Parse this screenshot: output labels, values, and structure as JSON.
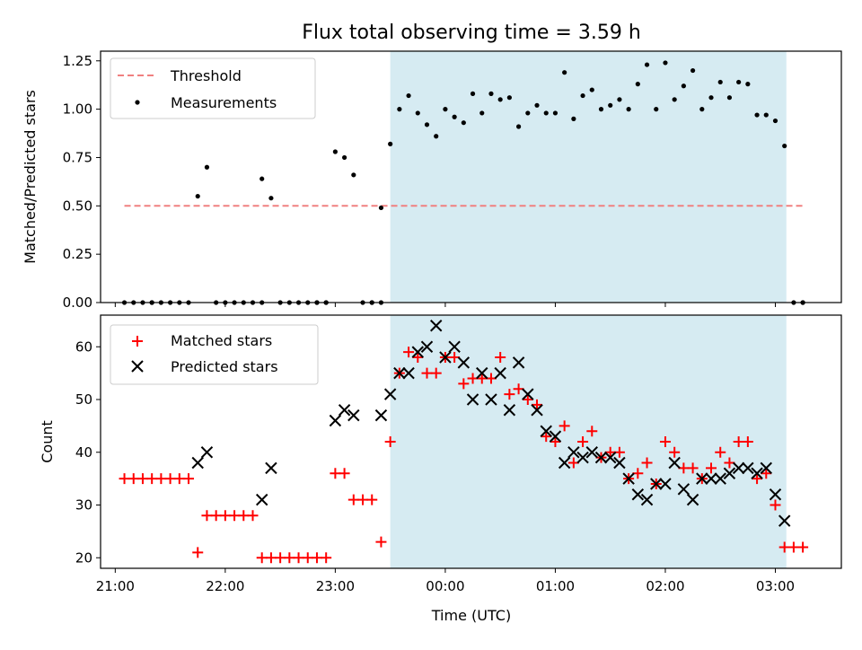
{
  "chart_data": [
    {
      "type": "scatter",
      "title": "Flux total observing time = 3.59 h",
      "ylabel": "Matched/Predicted stars",
      "xlabel": "",
      "xlim": [
        "20:52",
        "03:36"
      ],
      "ylim": [
        0,
        1.3
      ],
      "yticks": [
        0.0,
        0.25,
        0.5,
        0.75,
        1.0,
        1.25
      ],
      "ytick_labels": [
        "0.00",
        "0.25",
        "0.50",
        "0.75",
        "1.00",
        "1.25"
      ],
      "highlight_span": [
        "23:30",
        "03:06"
      ],
      "highlight_color": "#add8e6",
      "legend_position": "upper-left",
      "threshold": {
        "name": "Threshold",
        "value": 0.5,
        "x_range": [
          "21:05",
          "03:15"
        ],
        "color": "#f08080"
      },
      "series": [
        {
          "name": "Measurements",
          "color": "#000000",
          "marker": "dot",
          "x": [
            "21:05",
            "21:10",
            "21:15",
            "21:20",
            "21:25",
            "21:30",
            "21:35",
            "21:40",
            "21:45",
            "21:50",
            "21:55",
            "22:00",
            "22:05",
            "22:10",
            "22:15",
            "22:20",
            "22:25",
            "22:30",
            "22:35",
            "22:40",
            "22:45",
            "22:50",
            "22:55",
            "23:00",
            "23:05",
            "23:10",
            "23:15",
            "23:20",
            "23:25",
            "23:30",
            "23:35",
            "23:40",
            "23:45",
            "23:50",
            "23:55",
            "24:00",
            "24:05",
            "24:10",
            "24:15",
            "24:20",
            "24:25",
            "24:30",
            "24:35",
            "24:40",
            "24:45",
            "24:50",
            "24:55",
            "25:00",
            "25:05",
            "25:10",
            "25:15",
            "25:20",
            "25:25",
            "25:30",
            "25:35",
            "25:40",
            "25:45",
            "25:50",
            "25:55",
            "26:00",
            "26:05",
            "26:10",
            "26:15",
            "26:20",
            "26:25",
            "26:30",
            "26:35",
            "26:40",
            "26:45",
            "26:50",
            "26:55",
            "27:00",
            "27:05",
            "27:10",
            "27:15",
            "21:20",
            "22:20",
            "22:50",
            "22:55",
            "23:20",
            "23:25",
            "27:15"
          ],
          "y": [
            0,
            0,
            0,
            0,
            0,
            0,
            0,
            0,
            0.55,
            0.7,
            0,
            0,
            0,
            0,
            0,
            0.64,
            0.54,
            0,
            0,
            0,
            0,
            0,
            0,
            0.78,
            0.75,
            0.66,
            0,
            0,
            0.49,
            0.82,
            1.0,
            1.07,
            0.98,
            0.92,
            0.86,
            1.0,
            0.96,
            0.93,
            1.08,
            0.98,
            1.08,
            1.05,
            1.06,
            0.91,
            0.98,
            1.02,
            0.98,
            0.98,
            1.19,
            0.95,
            1.07,
            1.1,
            1.0,
            1.02,
            1.05,
            1.0,
            1.13,
            1.23,
            1.0,
            1.24,
            1.05,
            1.12,
            1.2,
            1.0,
            1.06,
            1.14,
            1.06,
            1.14,
            1.13,
            0.97,
            0.97,
            0.94,
            0.81,
            0,
            0,
            0,
            0,
            0,
            0,
            0,
            0,
            0
          ]
        }
      ]
    },
    {
      "type": "scatter",
      "title": "",
      "ylabel": "Count",
      "xlabel": "Time (UTC)",
      "xlim": [
        "20:52",
        "03:36"
      ],
      "ylim": [
        18,
        66
      ],
      "yticks": [
        20,
        30,
        40,
        50,
        60
      ],
      "xticks": [
        "21:00",
        "22:00",
        "23:00",
        "00:00",
        "01:00",
        "02:00",
        "03:00"
      ],
      "highlight_span": [
        "23:30",
        "03:06"
      ],
      "legend_position": "upper-left",
      "series": [
        {
          "name": "Matched stars",
          "color": "#ff0000",
          "marker": "plus",
          "x": [
            "21:05",
            "21:10",
            "21:15",
            "21:20",
            "21:25",
            "21:30",
            "21:35",
            "21:40",
            "21:45",
            "21:50",
            "21:55",
            "22:00",
            "22:05",
            "22:10",
            "22:15",
            "22:20",
            "22:25",
            "22:30",
            "22:35",
            "22:40",
            "22:45",
            "22:50",
            "22:55",
            "23:00",
            "23:05",
            "23:10",
            "23:15",
            "23:20",
            "23:25",
            "23:30",
            "23:35",
            "23:40",
            "23:45",
            "23:50",
            "23:55",
            "24:00",
            "24:05",
            "24:10",
            "24:15",
            "24:20",
            "24:25",
            "24:30",
            "24:35",
            "24:40",
            "24:45",
            "24:50",
            "24:55",
            "25:00",
            "25:05",
            "25:10",
            "25:15",
            "25:20",
            "25:25",
            "25:30",
            "25:35",
            "25:40",
            "25:45",
            "25:50",
            "25:55",
            "26:00",
            "26:05",
            "26:10",
            "26:15",
            "26:20",
            "26:25",
            "26:30",
            "26:35",
            "26:40",
            "26:45",
            "26:50",
            "26:55",
            "27:00",
            "27:05",
            "27:10",
            "27:15"
          ],
          "y": [
            35,
            35,
            35,
            35,
            35,
            35,
            35,
            35,
            21,
            28,
            28,
            28,
            28,
            28,
            28,
            20,
            20,
            20,
            20,
            20,
            20,
            20,
            20,
            36,
            36,
            31,
            31,
            31,
            23,
            42,
            55,
            59,
            58,
            55,
            55,
            58,
            58,
            53,
            54,
            54,
            54,
            58,
            51,
            52,
            50,
            49,
            43,
            42,
            45,
            38,
            42,
            44,
            39,
            40,
            40,
            35,
            36,
            38,
            34,
            42,
            40,
            37,
            37,
            35,
            37,
            40,
            38,
            42,
            42,
            35,
            36,
            30,
            22,
            22,
            22
          ]
        },
        {
          "name": "Predicted stars",
          "color": "#000000",
          "marker": "x",
          "x": [
            "21:45",
            "21:50",
            "22:20",
            "22:25",
            "23:00",
            "23:05",
            "23:10",
            "23:25",
            "23:30",
            "23:35",
            "23:40",
            "23:45",
            "23:50",
            "23:55",
            "24:00",
            "24:05",
            "24:10",
            "24:15",
            "24:20",
            "24:25",
            "24:30",
            "24:35",
            "24:40",
            "24:45",
            "24:50",
            "24:55",
            "25:00",
            "25:05",
            "25:10",
            "25:15",
            "25:20",
            "25:25",
            "25:30",
            "25:35",
            "25:40",
            "25:45",
            "25:50",
            "25:55",
            "26:00",
            "26:05",
            "26:10",
            "26:15",
            "26:20",
            "26:25",
            "26:30",
            "26:35",
            "26:40",
            "26:45",
            "26:50",
            "26:55",
            "27:00",
            "27:05"
          ],
          "y": [
            38,
            40,
            31,
            37,
            46,
            48,
            47,
            47,
            51,
            55,
            55,
            59,
            60,
            64,
            58,
            60,
            57,
            50,
            55,
            50,
            55,
            48,
            57,
            51,
            48,
            44,
            43,
            38,
            40,
            39,
            40,
            39,
            39,
            38,
            35,
            32,
            31,
            34,
            34,
            38,
            33,
            31,
            35,
            35,
            35,
            36,
            37,
            37,
            36,
            37,
            32,
            27
          ]
        }
      ]
    }
  ]
}
